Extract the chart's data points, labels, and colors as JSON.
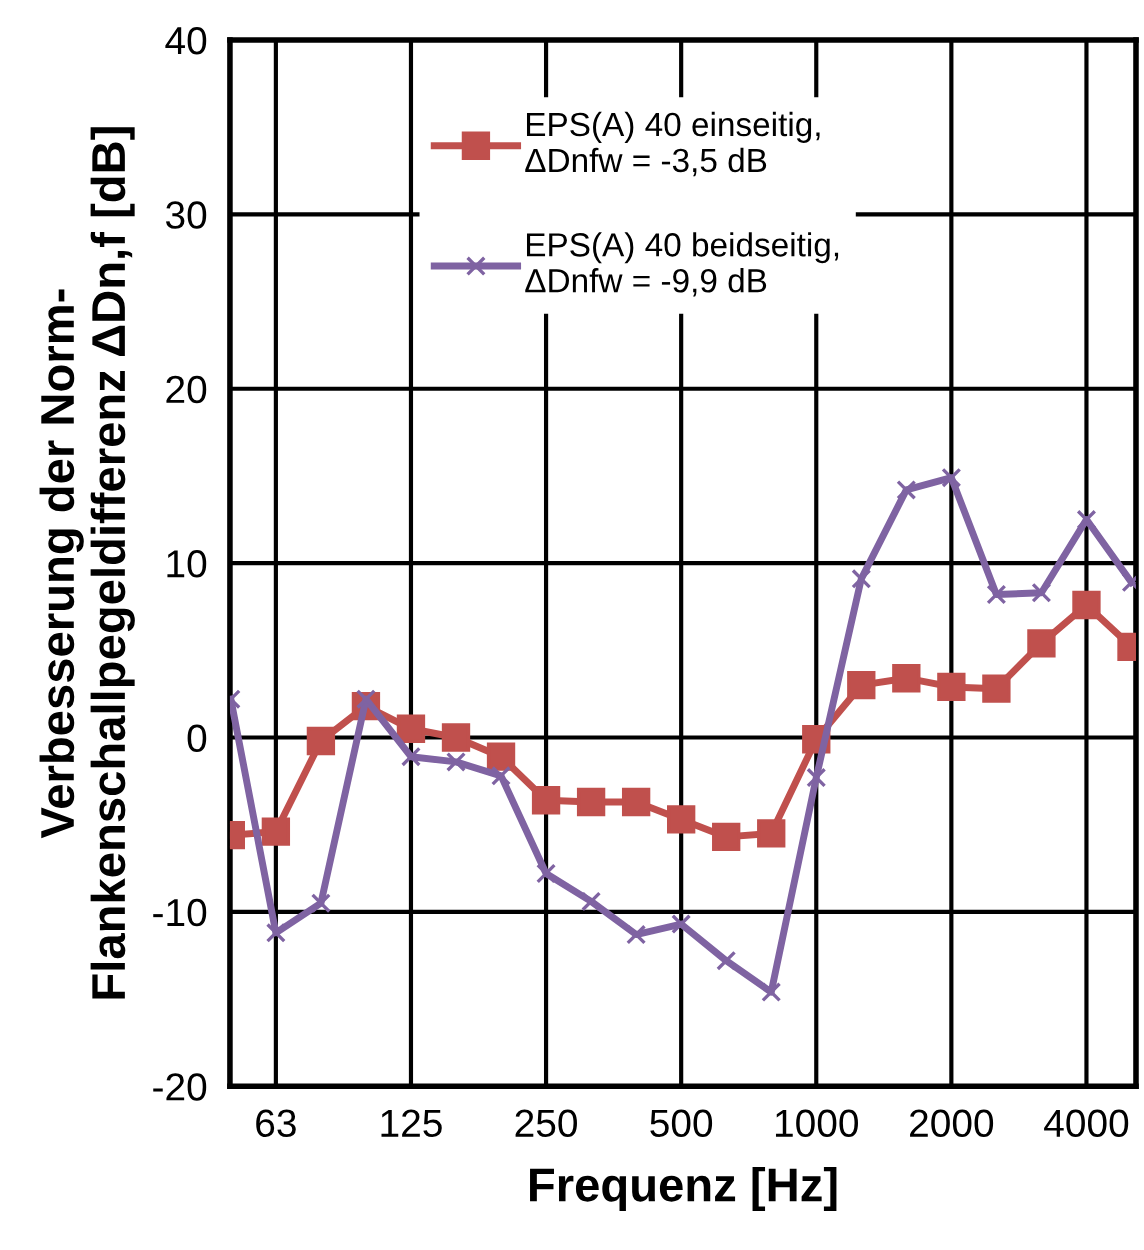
{
  "chart_data": {
    "type": "line",
    "xlabel": "Frequenz [Hz]",
    "ylabel": "Verbesserung der Norm-\nFlankenschallpegeldifferenz ΔDn,f [dB]",
    "categories": [
      null,
      "63",
      null,
      null,
      "125",
      null,
      null,
      "250",
      null,
      null,
      "500",
      null,
      null,
      "1000",
      null,
      null,
      "2000",
      null,
      null,
      "4000",
      null
    ],
    "series": [
      {
        "name": "EPS(A) 40 einseitig,\nΔDnfw = -3,5 dB",
        "color": "#c0504d",
        "marker": "square",
        "values": [
          -5.6,
          -5.4,
          -0.2,
          1.8,
          0.5,
          0.0,
          -1.1,
          -3.6,
          -3.7,
          -3.7,
          -4.7,
          -5.7,
          -5.5,
          -0.1,
          3.0,
          3.4,
          2.9,
          2.8,
          5.4,
          7.6,
          5.2
        ]
      },
      {
        "name": "EPS(A) 40 beidseitig,\nΔDnfw = -9,9 dB",
        "color": "#7f63a2",
        "marker": "cross",
        "values": [
          2.2,
          -11.2,
          -9.5,
          2.2,
          -1.1,
          -1.4,
          -2.2,
          -7.8,
          -9.4,
          -11.3,
          -10.7,
          -12.8,
          -14.6,
          -2.3,
          9.1,
          14.2,
          14.9,
          8.2,
          8.3,
          12.5,
          8.9
        ]
      }
    ],
    "ylim": [
      -20,
      40
    ],
    "yticks": [
      -20,
      -10,
      0,
      10,
      20,
      30,
      40
    ],
    "grid": true,
    "legend": "top"
  }
}
